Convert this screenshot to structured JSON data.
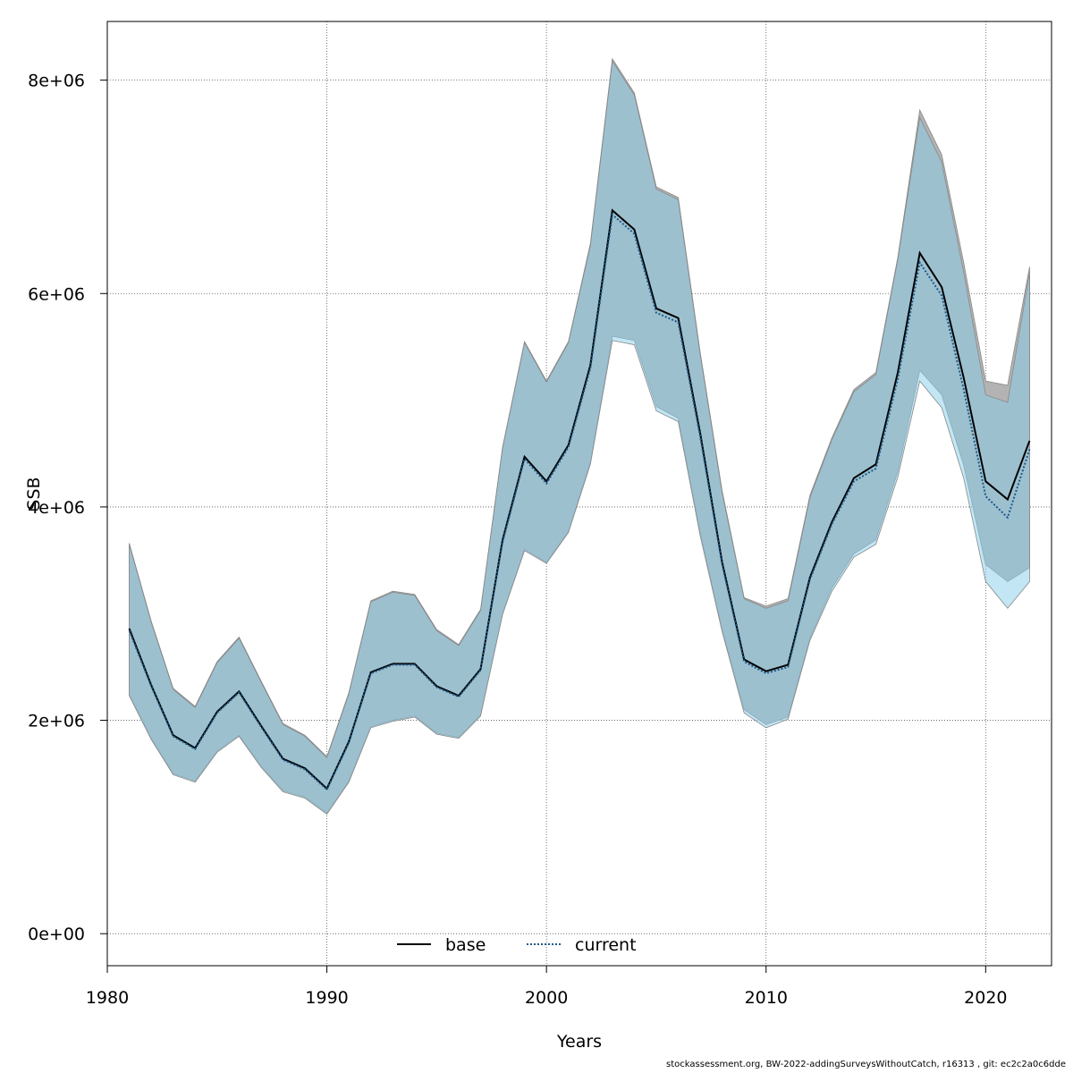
{
  "chart_data": {
    "type": "area",
    "xlabel": "Years",
    "ylabel": "SSB",
    "xlim": [
      1980,
      2023
    ],
    "ylim": [
      -300000,
      8550000
    ],
    "x_ticks": [
      1980,
      1990,
      2000,
      2010,
      2020
    ],
    "y_ticks": [
      0,
      2000000,
      4000000,
      6000000,
      8000000
    ],
    "y_tick_labels": [
      "0e+00",
      "2e+06",
      "4e+06",
      "6e+06",
      "8e+06"
    ],
    "grid": true,
    "legend_position": "bottom-center",
    "x": [
      1981,
      1982,
      1983,
      1984,
      1985,
      1986,
      1987,
      1988,
      1989,
      1990,
      1991,
      1992,
      1993,
      1994,
      1995,
      1996,
      1997,
      1998,
      1999,
      2000,
      2001,
      2002,
      2003,
      2004,
      2005,
      2006,
      2007,
      2008,
      2009,
      2010,
      2011,
      2012,
      2013,
      2014,
      2015,
      2016,
      2017,
      2018,
      2019,
      2020,
      2021,
      2022
    ],
    "series": [
      {
        "name": "base",
        "style": "solid",
        "line_color": "#000000",
        "band_color": "#b3b3b3",
        "values": [
          2860000,
          2330000,
          1860000,
          1740000,
          2080000,
          2270000,
          1950000,
          1640000,
          1550000,
          1360000,
          1800000,
          2450000,
          2530000,
          2530000,
          2320000,
          2230000,
          2480000,
          3690000,
          4470000,
          4240000,
          4580000,
          5330000,
          6780000,
          6600000,
          5860000,
          5770000,
          4690000,
          3480000,
          2570000,
          2460000,
          2520000,
          3340000,
          3860000,
          4270000,
          4400000,
          5260000,
          6380000,
          6060000,
          5210000,
          4240000,
          4070000,
          4620000
        ],
        "lower": [
          2240000,
          1830000,
          1500000,
          1430000,
          1710000,
          1860000,
          1570000,
          1340000,
          1280000,
          1130000,
          1430000,
          1940000,
          2000000,
          2040000,
          1880000,
          1840000,
          2050000,
          3000000,
          3600000,
          3480000,
          3770000,
          4420000,
          5600000,
          5560000,
          4940000,
          4830000,
          3760000,
          2850000,
          2100000,
          1960000,
          2030000,
          2770000,
          3240000,
          3560000,
          3690000,
          4330000,
          5280000,
          5050000,
          4390000,
          3460000,
          3300000,
          3430000
        ],
        "upper": [
          3660000,
          2930000,
          2300000,
          2130000,
          2550000,
          2780000,
          2370000,
          1970000,
          1860000,
          1660000,
          2260000,
          3120000,
          3210000,
          3180000,
          2850000,
          2710000,
          3040000,
          4560000,
          5550000,
          5180000,
          5550000,
          6470000,
          8200000,
          7880000,
          7000000,
          6900000,
          5450000,
          4150000,
          3150000,
          3070000,
          3140000,
          4110000,
          4650000,
          5100000,
          5260000,
          6340000,
          7720000,
          7300000,
          6290000,
          5180000,
          5140000,
          6250000
        ]
      },
      {
        "name": "current",
        "style": "dotted",
        "line_color": "#1b5a8a",
        "band_color": "#87ceeb",
        "values": [
          2840000,
          2320000,
          1850000,
          1730000,
          2070000,
          2260000,
          1940000,
          1630000,
          1540000,
          1350000,
          1790000,
          2440000,
          2520000,
          2520000,
          2310000,
          2220000,
          2470000,
          3670000,
          4450000,
          4220000,
          4560000,
          5300000,
          6740000,
          6560000,
          5820000,
          5730000,
          4660000,
          3460000,
          2550000,
          2440000,
          2500000,
          3320000,
          3840000,
          4240000,
          4360000,
          5200000,
          6290000,
          5980000,
          5100000,
          4100000,
          3900000,
          4540000
        ],
        "lower": [
          2230000,
          1820000,
          1490000,
          1420000,
          1700000,
          1850000,
          1560000,
          1330000,
          1270000,
          1120000,
          1420000,
          1930000,
          1990000,
          2030000,
          1870000,
          1830000,
          2040000,
          2990000,
          3590000,
          3470000,
          3760000,
          4400000,
          5560000,
          5520000,
          4900000,
          4800000,
          3730000,
          2830000,
          2070000,
          1930000,
          2010000,
          2750000,
          3210000,
          3530000,
          3650000,
          4280000,
          5180000,
          4930000,
          4270000,
          3300000,
          3050000,
          3300000
        ],
        "upper": [
          3650000,
          2920000,
          2290000,
          2120000,
          2540000,
          2770000,
          2360000,
          1960000,
          1850000,
          1650000,
          2250000,
          3110000,
          3200000,
          3170000,
          2840000,
          2700000,
          3030000,
          4550000,
          5540000,
          5170000,
          5540000,
          6450000,
          8180000,
          7860000,
          6980000,
          6880000,
          5430000,
          4130000,
          3140000,
          3050000,
          3120000,
          4090000,
          4630000,
          5080000,
          5240000,
          6320000,
          7650000,
          7230000,
          6200000,
          5050000,
          4980000,
          6200000
        ]
      }
    ]
  },
  "footer": "stockassessment.org, BW-2022-addingSurveysWithoutCatch, r16313 , git: ec2c2a0c6dde"
}
